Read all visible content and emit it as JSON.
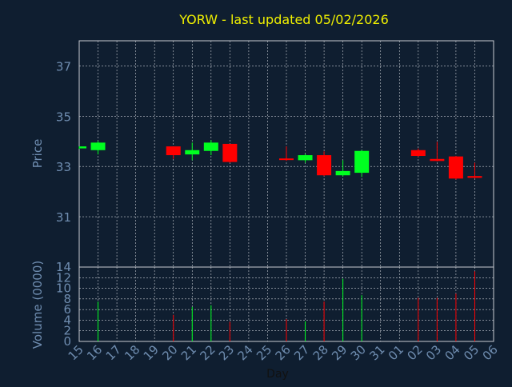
{
  "colors": {
    "background": "#0f1e30",
    "plot_border": "#c8ccd2",
    "grid": "#c8ccd2",
    "title": "#f0f000",
    "axis_text": "#6f8db0",
    "up": "#00ff20",
    "down": "#ff0000"
  },
  "chart_data": [
    {
      "type": "candlestick",
      "title": "YORW - last updated 05/02/2026",
      "ylabel": "Price",
      "ylim": [
        29,
        38
      ],
      "yticks": [
        31,
        33,
        35,
        37
      ],
      "grid": true,
      "x_dates": [
        "15",
        "16",
        "17",
        "18",
        "19",
        "20",
        "21",
        "22",
        "23",
        "24",
        "25",
        "26",
        "27",
        "28",
        "29",
        "30",
        "31",
        "01",
        "02",
        "03",
        "04",
        "05",
        "06"
      ],
      "candles": [
        {
          "day": "15",
          "open": 33.72,
          "high": 33.8,
          "low": 33.7,
          "close": 33.8
        },
        {
          "day": "16",
          "open": 33.65,
          "high": 34.02,
          "low": 33.48,
          "close": 33.95
        },
        {
          "day": "20",
          "open": 33.8,
          "high": 33.8,
          "low": 33.3,
          "close": 33.45
        },
        {
          "day": "21",
          "open": 33.48,
          "high": 33.95,
          "low": 33.25,
          "close": 33.65
        },
        {
          "day": "22",
          "open": 33.62,
          "high": 34.05,
          "low": 33.45,
          "close": 33.95
        },
        {
          "day": "23",
          "open": 33.9,
          "high": 33.9,
          "low": 33.15,
          "close": 33.18
        },
        {
          "day": "26",
          "open": 33.32,
          "high": 33.8,
          "low": 33.22,
          "close": 33.26
        },
        {
          "day": "27",
          "open": 33.25,
          "high": 33.5,
          "low": 33.15,
          "close": 33.45
        },
        {
          "day": "28",
          "open": 33.45,
          "high": 33.6,
          "low": 32.62,
          "close": 32.65
        },
        {
          "day": "29",
          "open": 32.65,
          "high": 33.25,
          "low": 32.6,
          "close": 32.82
        },
        {
          "day": "30",
          "open": 32.75,
          "high": 33.65,
          "low": 32.58,
          "close": 33.62
        },
        {
          "day": "02",
          "open": 33.65,
          "high": 33.72,
          "low": 33.38,
          "close": 33.42
        },
        {
          "day": "03",
          "open": 33.3,
          "high": 33.98,
          "low": 33.2,
          "close": 33.22
        },
        {
          "day": "04",
          "open": 33.4,
          "high": 33.42,
          "low": 32.48,
          "close": 32.52
        },
        {
          "day": "05",
          "open": 32.62,
          "high": 33.15,
          "low": 32.52,
          "close": 32.55
        }
      ]
    },
    {
      "type": "bar",
      "ylabel": "Volume (0000)",
      "xlabel": "Day",
      "ylim": [
        0,
        14
      ],
      "yticks": [
        0,
        2,
        4,
        6,
        8,
        10,
        12,
        14
      ],
      "grid": true,
      "bars": [
        {
          "day": "16",
          "value": 7.5,
          "dir": "up"
        },
        {
          "day": "20",
          "value": 5.0,
          "dir": "down"
        },
        {
          "day": "21",
          "value": 6.5,
          "dir": "up"
        },
        {
          "day": "22",
          "value": 6.8,
          "dir": "up"
        },
        {
          "day": "23",
          "value": 3.7,
          "dir": "down"
        },
        {
          "day": "26",
          "value": 4.2,
          "dir": "down"
        },
        {
          "day": "27",
          "value": 3.8,
          "dir": "up"
        },
        {
          "day": "28",
          "value": 7.5,
          "dir": "down"
        },
        {
          "day": "29",
          "value": 11.8,
          "dir": "up"
        },
        {
          "day": "30",
          "value": 8.7,
          "dir": "up"
        },
        {
          "day": "02",
          "value": 8.2,
          "dir": "down"
        },
        {
          "day": "03",
          "value": 8.2,
          "dir": "down"
        },
        {
          "day": "04",
          "value": 9.0,
          "dir": "down"
        },
        {
          "day": "05",
          "value": 13.2,
          "dir": "down"
        }
      ]
    }
  ]
}
